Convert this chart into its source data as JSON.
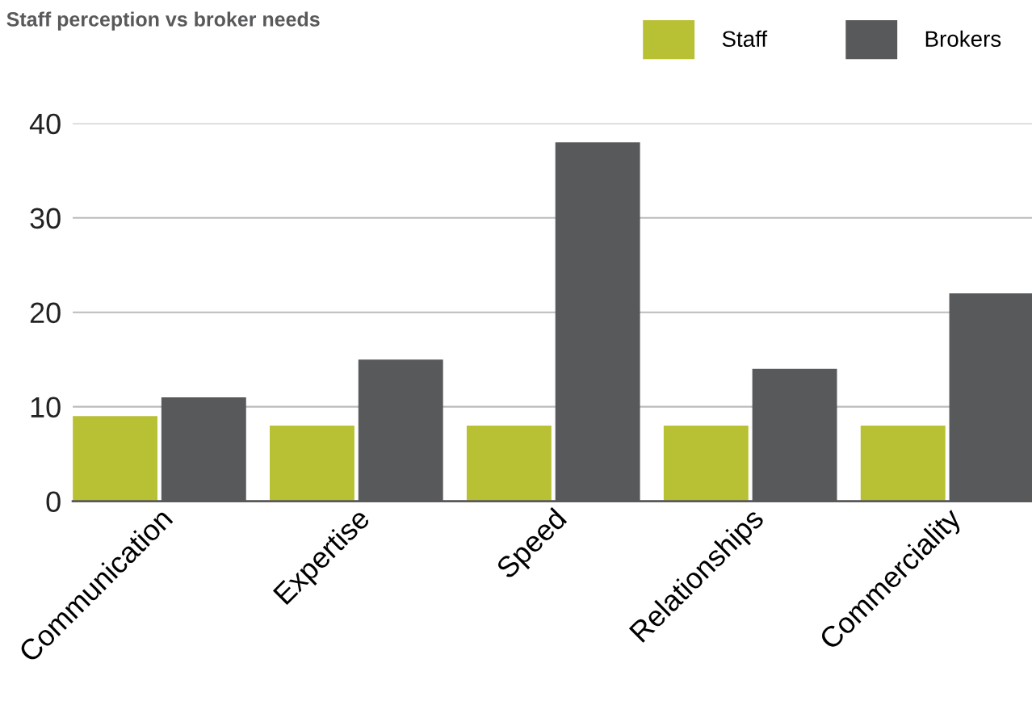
{
  "chart_data": {
    "type": "bar",
    "title": "Staff perception vs broker needs",
    "categories": [
      "Communication",
      "Expertise",
      "Speed",
      "Relationships",
      "Commerciality"
    ],
    "series": [
      {
        "name": "Staff",
        "color": "#b8c034",
        "values": [
          9,
          8,
          8,
          8,
          8
        ]
      },
      {
        "name": "Brokers",
        "color": "#58595b",
        "values": [
          11,
          15,
          38,
          14,
          22
        ]
      }
    ],
    "ylim": [
      0,
      40
    ],
    "yticks": [
      0,
      10,
      20,
      30,
      40
    ],
    "grid": "y",
    "legend": "top right"
  }
}
